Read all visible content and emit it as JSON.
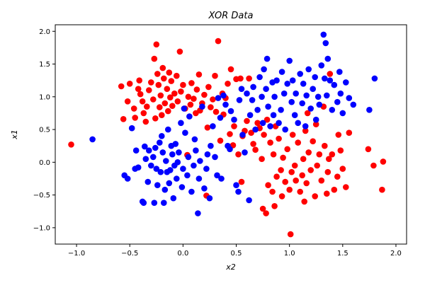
{
  "chart_data": {
    "type": "scatter",
    "title": "XOR Data",
    "xlabel": "x2",
    "ylabel": "x1",
    "xlim": [
      -1.2,
      2.1
    ],
    "ylim": [
      -1.25,
      2.1
    ],
    "xticks": [
      "−1.0",
      "−0.5",
      "0.0",
      "0.5",
      "1.0",
      "1.5",
      "2.0"
    ],
    "xtick_values": [
      -1.0,
      -0.5,
      0.0,
      0.5,
      1.0,
      1.5,
      2.0
    ],
    "yticks": [
      "−1.0",
      "−0.5",
      "0.0",
      "0.5",
      "1.0",
      "1.5",
      "2.0"
    ],
    "ytick_values": [
      -1.0,
      -0.5,
      0.0,
      0.5,
      1.0,
      1.5,
      2.0
    ],
    "grid": false,
    "legend": "none",
    "series": [
      {
        "color": "#ff0000",
        "points": [
          [
            -1.05,
            0.27
          ],
          [
            -0.58,
            1.16
          ],
          [
            -0.56,
            0.66
          ],
          [
            -0.52,
            0.93
          ],
          [
            -0.5,
            1.2
          ],
          [
            -0.46,
            0.82
          ],
          [
            -0.45,
            0.68
          ],
          [
            -0.42,
            1.12
          ],
          [
            -0.41,
            1.25
          ],
          [
            -0.4,
            1.04
          ],
          [
            -0.38,
            0.93
          ],
          [
            -0.37,
            0.75
          ],
          [
            -0.35,
            0.62
          ],
          [
            -0.34,
            0.85
          ],
          [
            -0.32,
            1.1
          ],
          [
            -0.3,
            1.22
          ],
          [
            -0.28,
            0.96
          ],
          [
            -0.27,
            1.58
          ],
          [
            -0.26,
            0.67
          ],
          [
            -0.25,
            1.8
          ],
          [
            -0.24,
            1.35
          ],
          [
            -0.23,
            1.18
          ],
          [
            -0.22,
            0.84
          ],
          [
            -0.21,
            1.02
          ],
          [
            -0.2,
            0.72
          ],
          [
            -0.19,
            1.44
          ],
          [
            -0.18,
            1.28
          ],
          [
            -0.17,
            0.9
          ],
          [
            -0.15,
            1.12
          ],
          [
            -0.14,
            0.78
          ],
          [
            -0.13,
            1.37
          ],
          [
            -0.12,
            0.99
          ],
          [
            -0.11,
            1.24
          ],
          [
            -0.1,
            0.86
          ],
          [
            -0.08,
            1.05
          ],
          [
            -0.06,
            1.32
          ],
          [
            -0.05,
            0.93
          ],
          [
            -0.03,
            1.69
          ],
          [
            -0.02,
            1.08
          ],
          [
            0.0,
            1.18
          ],
          [
            0.02,
            0.82
          ],
          [
            0.04,
            0.11
          ],
          [
            0.05,
            1.0
          ],
          [
            0.07,
            0.88
          ],
          [
            0.08,
            1.21
          ],
          [
            0.1,
            0.97
          ],
          [
            0.12,
            0.75
          ],
          [
            0.13,
            1.11
          ],
          [
            0.15,
            1.34
          ],
          [
            0.16,
            0.79
          ],
          [
            0.18,
            0.9
          ],
          [
            0.2,
            1.03
          ],
          [
            0.22,
            -0.51
          ],
          [
            0.23,
            0.53
          ],
          [
            0.24,
            1.15
          ],
          [
            0.26,
            0.84
          ],
          [
            0.28,
            0.96
          ],
          [
            0.3,
            1.32
          ],
          [
            0.31,
            0.77
          ],
          [
            0.33,
            1.85
          ],
          [
            0.35,
            0.33
          ],
          [
            0.37,
            1.05
          ],
          [
            0.38,
            0.73
          ],
          [
            0.4,
            0.98
          ],
          [
            0.42,
            1.2
          ],
          [
            0.44,
            0.43
          ],
          [
            0.45,
            1.42
          ],
          [
            0.47,
            0.26
          ],
          [
            0.48,
            0.55
          ],
          [
            0.5,
            1.27
          ],
          [
            0.52,
            0.12
          ],
          [
            0.54,
            1.28
          ],
          [
            0.55,
            -0.3
          ],
          [
            0.56,
            0.4
          ],
          [
            0.58,
            0.48
          ],
          [
            0.6,
            0.63
          ],
          [
            0.62,
            1.28
          ],
          [
            0.64,
            0.45
          ],
          [
            0.66,
            0.28
          ],
          [
            0.68,
            0.19
          ],
          [
            0.7,
            0.6
          ],
          [
            0.72,
            0.52
          ],
          [
            0.74,
            0.05
          ],
          [
            0.75,
            -0.71
          ],
          [
            0.76,
            0.42
          ],
          [
            0.78,
            -0.78
          ],
          [
            0.79,
            0.65
          ],
          [
            0.8,
            -0.35
          ],
          [
            0.82,
            0.3
          ],
          [
            0.84,
            -0.45
          ],
          [
            0.85,
            0.12
          ],
          [
            0.86,
            -0.67
          ],
          [
            0.87,
            0.55
          ],
          [
            0.88,
            -0.22
          ],
          [
            0.9,
            0.36
          ],
          [
            0.92,
            -0.12
          ],
          [
            0.93,
            -0.52
          ],
          [
            0.94,
            0.07
          ],
          [
            0.96,
            -0.3
          ],
          [
            0.98,
            0.2
          ],
          [
            1.0,
            -0.42
          ],
          [
            1.01,
            -1.1
          ],
          [
            1.02,
            -0.15
          ],
          [
            1.03,
            0.42
          ],
          [
            1.05,
            -0.05
          ],
          [
            1.06,
            -0.28
          ],
          [
            1.08,
            0.3
          ],
          [
            1.1,
            -0.45
          ],
          [
            1.12,
            -0.2
          ],
          [
            1.13,
            0.05
          ],
          [
            1.14,
            -0.6
          ],
          [
            1.15,
            0.48
          ],
          [
            1.16,
            -0.32
          ],
          [
            1.17,
            0.75
          ],
          [
            1.18,
            0.15
          ],
          [
            1.2,
            -0.12
          ],
          [
            1.22,
            0.32
          ],
          [
            1.24,
            -0.52
          ],
          [
            1.25,
            0.58
          ],
          [
            1.26,
            -0.05
          ],
          [
            1.28,
            0.12
          ],
          [
            1.3,
            -0.28
          ],
          [
            1.32,
            0.85
          ],
          [
            1.33,
            0.25
          ],
          [
            1.35,
            -0.48
          ],
          [
            1.36,
            -0.15
          ],
          [
            1.37,
            0.05
          ],
          [
            1.38,
            1.35
          ],
          [
            1.4,
            0.12
          ],
          [
            1.42,
            -0.42
          ],
          [
            1.45,
            -0.22
          ],
          [
            1.46,
            0.42
          ],
          [
            1.48,
            0.18
          ],
          [
            1.5,
            -0.1
          ],
          [
            1.53,
            -0.38
          ],
          [
            1.56,
            0.45
          ],
          [
            1.74,
            0.2
          ],
          [
            1.79,
            -0.05
          ],
          [
            1.87,
            -0.42
          ],
          [
            1.88,
            0.01
          ]
        ]
      },
      {
        "color": "#0000ff",
        "points": [
          [
            -0.85,
            0.35
          ],
          [
            -0.55,
            -0.2
          ],
          [
            -0.52,
            -0.25
          ],
          [
            -0.48,
            0.52
          ],
          [
            -0.45,
            -0.1
          ],
          [
            -0.44,
            0.18
          ],
          [
            -0.42,
            -0.08
          ],
          [
            -0.38,
            -0.6
          ],
          [
            -0.37,
            -0.62
          ],
          [
            -0.36,
            0.24
          ],
          [
            -0.35,
            0.05
          ],
          [
            -0.33,
            -0.3
          ],
          [
            -0.32,
            0.18
          ],
          [
            -0.3,
            -0.05
          ],
          [
            -0.28,
            0.08
          ],
          [
            -0.27,
            -0.62
          ],
          [
            -0.26,
            0.22
          ],
          [
            -0.25,
            -0.1
          ],
          [
            -0.24,
            -0.35
          ],
          [
            -0.22,
            0.3
          ],
          [
            -0.21,
            -0.15
          ],
          [
            -0.2,
            0.4
          ],
          [
            -0.19,
            0.15
          ],
          [
            -0.18,
            -0.62
          ],
          [
            -0.17,
            -0.42
          ],
          [
            -0.16,
            0.02
          ],
          [
            -0.15,
            -0.15
          ],
          [
            -0.14,
            0.5
          ],
          [
            -0.13,
            -0.32
          ],
          [
            -0.12,
            -0.12
          ],
          [
            -0.11,
            0.25
          ],
          [
            -0.1,
            0.12
          ],
          [
            -0.09,
            -0.55
          ],
          [
            -0.08,
            -0.05
          ],
          [
            -0.07,
            0.28
          ],
          [
            -0.06,
            -0.25
          ],
          [
            -0.05,
            0.0
          ],
          [
            -0.04,
            0.15
          ],
          [
            -0.02,
            0.6
          ],
          [
            -0.01,
            -0.38
          ],
          [
            0.0,
            -0.1
          ],
          [
            0.01,
            0.82
          ],
          [
            0.02,
            0.45
          ],
          [
            0.04,
            -0.2
          ],
          [
            0.05,
            0.08
          ],
          [
            0.06,
            0.7
          ],
          [
            0.08,
            -0.45
          ],
          [
            0.1,
            -0.05
          ],
          [
            0.11,
            0.35
          ],
          [
            0.12,
            0.18
          ],
          [
            0.14,
            -0.78
          ],
          [
            0.15,
            -0.25
          ],
          [
            0.16,
            0.02
          ],
          [
            0.18,
            0.85
          ],
          [
            0.2,
            -0.4
          ],
          [
            0.22,
            -0.1
          ],
          [
            0.23,
            0.12
          ],
          [
            0.25,
            -0.55
          ],
          [
            0.26,
            0.25
          ],
          [
            0.28,
            0.55
          ],
          [
            0.3,
            0.08
          ],
          [
            0.32,
            -0.2
          ],
          [
            0.33,
            0.98
          ],
          [
            0.35,
            0.68
          ],
          [
            0.36,
            -0.25
          ],
          [
            0.38,
            1.02
          ],
          [
            0.4,
            0.88
          ],
          [
            0.42,
            0.25
          ],
          [
            0.44,
            0.2
          ],
          [
            0.45,
            0.78
          ],
          [
            0.48,
            0.65
          ],
          [
            0.5,
            -0.35
          ],
          [
            0.52,
            -0.45
          ],
          [
            0.53,
            0.95
          ],
          [
            0.55,
            1.12
          ],
          [
            0.56,
            0.42
          ],
          [
            0.58,
            0.15
          ],
          [
            0.6,
            1.05
          ],
          [
            0.62,
            -0.58
          ],
          [
            0.63,
            0.72
          ],
          [
            0.65,
            0.95
          ],
          [
            0.66,
            1.15
          ],
          [
            0.68,
            0.5
          ],
          [
            0.7,
            0.8
          ],
          [
            0.72,
            1.3
          ],
          [
            0.74,
            1.0
          ],
          [
            0.75,
            0.6
          ],
          [
            0.76,
            1.42
          ],
          [
            0.78,
            1.12
          ],
          [
            0.79,
            1.58
          ],
          [
            0.8,
            0.85
          ],
          [
            0.82,
            0.55
          ],
          [
            0.84,
            1.22
          ],
          [
            0.85,
            0.72
          ],
          [
            0.86,
            1.0
          ],
          [
            0.88,
            1.25
          ],
          [
            0.9,
            0.6
          ],
          [
            0.92,
            0.8
          ],
          [
            0.93,
            1.38
          ],
          [
            0.95,
            1.05
          ],
          [
            0.96,
            0.5
          ],
          [
            0.98,
            1.2
          ],
          [
            1.0,
            1.55
          ],
          [
            1.02,
            0.92
          ],
          [
            1.03,
            1.25
          ],
          [
            1.05,
            0.72
          ],
          [
            1.06,
            1.05
          ],
          [
            1.08,
            0.6
          ],
          [
            1.1,
            1.35
          ],
          [
            1.12,
            0.9
          ],
          [
            1.13,
            1.2
          ],
          [
            1.15,
            0.55
          ],
          [
            1.16,
            1.02
          ],
          [
            1.18,
            1.42
          ],
          [
            1.2,
            0.82
          ],
          [
            1.22,
            1.12
          ],
          [
            1.24,
            1.3
          ],
          [
            1.25,
            0.65
          ],
          [
            1.27,
            1.0
          ],
          [
            1.28,
            0.88
          ],
          [
            1.3,
            1.48
          ],
          [
            1.32,
            1.95
          ],
          [
            1.33,
            1.28
          ],
          [
            1.34,
            1.82
          ],
          [
            1.35,
            1.02
          ],
          [
            1.36,
            1.58
          ],
          [
            1.38,
            1.25
          ],
          [
            1.4,
            0.8
          ],
          [
            1.42,
            1.18
          ],
          [
            1.45,
            0.92
          ],
          [
            1.47,
            1.38
          ],
          [
            1.48,
            1.05
          ],
          [
            1.5,
            0.75
          ],
          [
            1.53,
            1.22
          ],
          [
            1.56,
            0.98
          ],
          [
            1.6,
            0.88
          ],
          [
            1.75,
            0.8
          ],
          [
            1.8,
            1.28
          ]
        ]
      }
    ]
  }
}
